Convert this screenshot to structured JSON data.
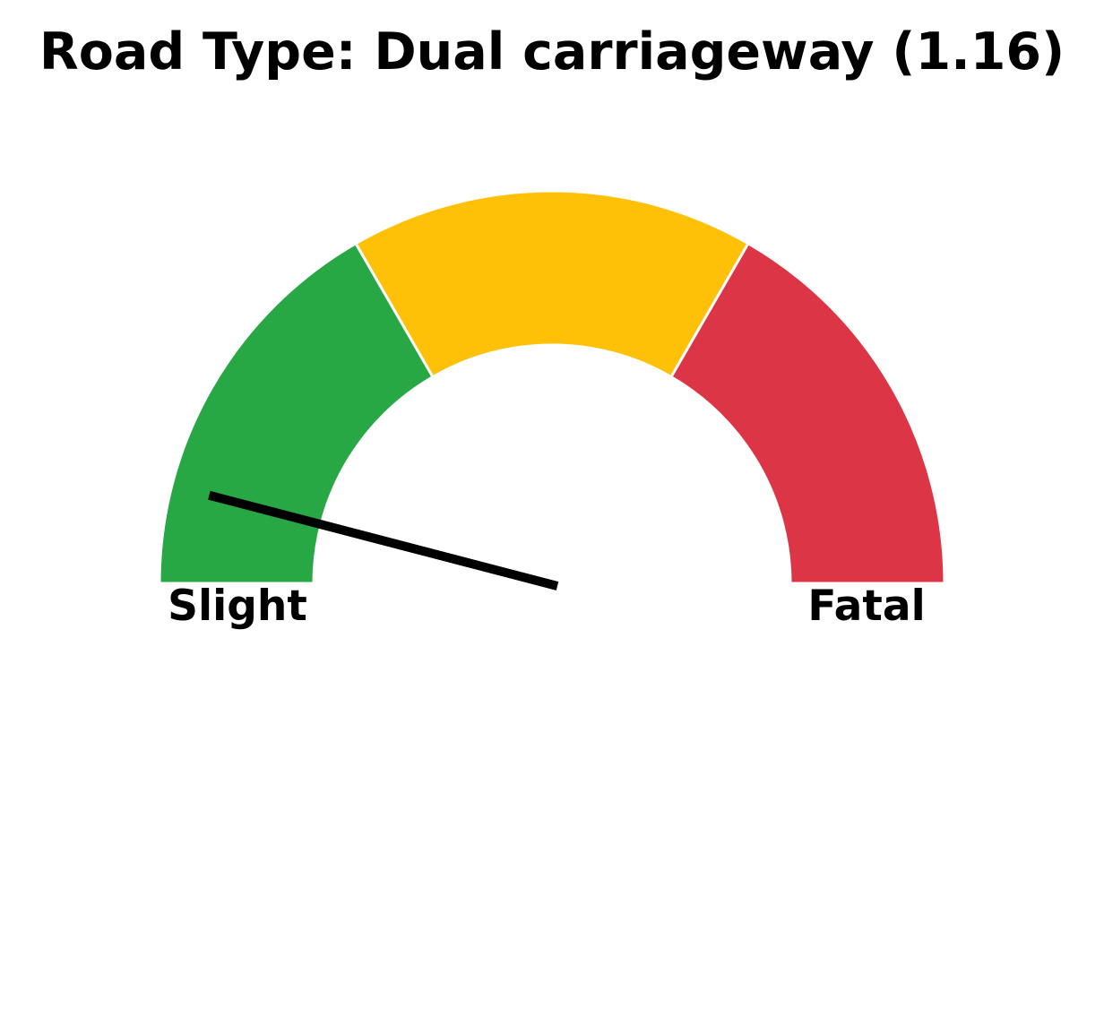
{
  "chart_data": {
    "type": "gauge",
    "title": "Road Type: Dual carriageway (1.16)",
    "value": 1.16,
    "min": 1,
    "max": 3,
    "min_label": "Slight",
    "max_label": "Fatal",
    "bands": [
      {
        "from": 1.0,
        "to": 1.6667,
        "color": "#28a745"
      },
      {
        "from": 1.6667,
        "to": 2.3333,
        "color": "#ffc107"
      },
      {
        "from": 2.3333,
        "to": 3.0,
        "color": "#dc3545"
      }
    ],
    "needle_color": "#000000"
  }
}
